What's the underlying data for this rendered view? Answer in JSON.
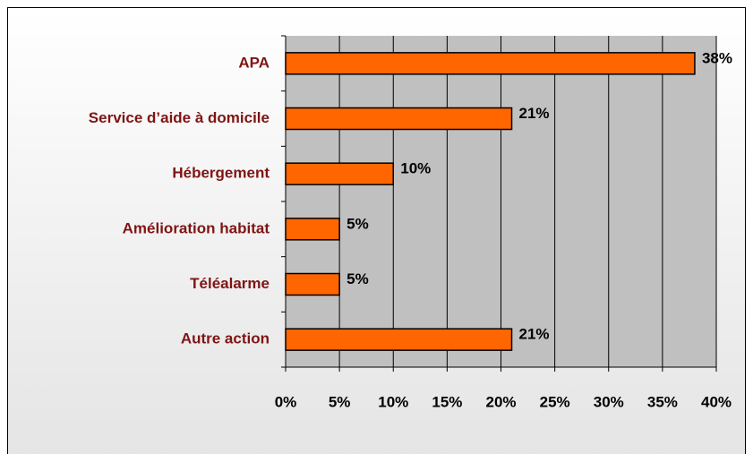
{
  "chart_data": {
    "type": "bar",
    "orientation": "horizontal",
    "categories": [
      "APA",
      "Service d’aide à domicile",
      "Hébergement",
      "Amélioration habitat",
      "Téléalarme",
      "Autre action"
    ],
    "values": [
      38,
      21,
      10,
      5,
      5,
      21
    ],
    "value_labels": [
      "38%",
      "21%",
      "10%",
      "5%",
      "5%",
      "21%"
    ],
    "color": "#ff6600",
    "xlim": [
      0,
      40
    ],
    "xticks": [
      {
        "value": 0,
        "label": "0%"
      },
      {
        "value": 5,
        "label": "5%"
      },
      {
        "value": 10,
        "label": "10%"
      },
      {
        "value": 15,
        "label": "15%"
      },
      {
        "value": 20,
        "label": "20%"
      },
      {
        "value": 25,
        "label": "25%"
      },
      {
        "value": 30,
        "label": "30%"
      },
      {
        "value": 35,
        "label": "35%"
      },
      {
        "value": 40,
        "label": "40%"
      }
    ],
    "grid": true
  }
}
